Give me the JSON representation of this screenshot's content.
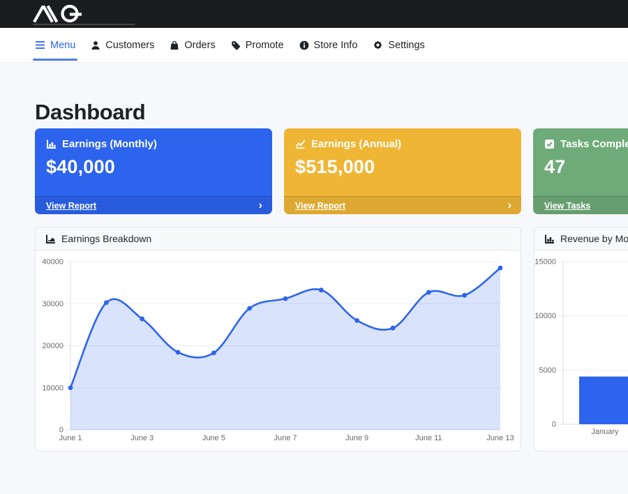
{
  "topbar": {
    "brand": "AQ",
    "bg": "#1b1c20"
  },
  "nav": {
    "active_color": "#2d64ee",
    "items": [
      {
        "label": "Menu",
        "icon": "hamburger-icon",
        "active": true
      },
      {
        "label": "Customers",
        "icon": "user-icon",
        "active": false
      },
      {
        "label": "Orders",
        "icon": "shopping-bag-icon",
        "active": false
      },
      {
        "label": "Promote",
        "icon": "tag-icon",
        "active": false
      },
      {
        "label": "Store Info",
        "icon": "info-circle-icon",
        "active": false
      },
      {
        "label": "Settings",
        "icon": "gear-icon",
        "active": false
      }
    ]
  },
  "page": {
    "title": "Dashboard",
    "background": "#f7f8fb"
  },
  "icons": {
    "chevron_right": "›"
  },
  "stat_cards": [
    {
      "title": "Earnings (Monthly)",
      "value": "$40,000",
      "link_label": "View Report",
      "color": "#2d64ee",
      "icon": "chart-bar-icon"
    },
    {
      "title": "Earnings (Annual)",
      "value": "$515,000",
      "link_label": "View Report",
      "color": "#efb636",
      "icon": "chart-line-icon"
    },
    {
      "title": "Tasks Completed",
      "value": "47",
      "link_label": "View Tasks",
      "color": "#6fab79",
      "icon": "check-square-icon"
    }
  ],
  "chart_data": [
    {
      "type": "line",
      "title": "Earnings Breakdown",
      "x": [
        "June 1",
        "June 2",
        "June 3",
        "June 4",
        "June 5",
        "June 6",
        "June 7",
        "June 8",
        "June 9",
        "June 10",
        "June 11",
        "June 12",
        "June 13"
      ],
      "xticks_shown": [
        "June 1",
        "June 3",
        "June 5",
        "June 7",
        "June 9",
        "June 11",
        "June 13"
      ],
      "values": [
        10000,
        30250,
        26400,
        18450,
        18300,
        28900,
        31200,
        33250,
        26000,
        24200,
        32700,
        32000,
        38500
      ],
      "ylim": [
        0,
        40000
      ],
      "yticks": [
        0,
        10000,
        20000,
        30000,
        40000
      ],
      "line_color": "#2d64ee",
      "fill_color": "rgba(45,100,238,0.18)",
      "grid": "horizontal",
      "legend": "none"
    },
    {
      "type": "bar",
      "title": "Revenue by Month",
      "categories": [
        "January"
      ],
      "values": [
        4400
      ],
      "ylim": [
        0,
        15000
      ],
      "yticks": [
        0,
        5000,
        10000,
        15000
      ],
      "bar_color": "#2d64ee",
      "grid": "horizontal",
      "legend": "none"
    }
  ]
}
